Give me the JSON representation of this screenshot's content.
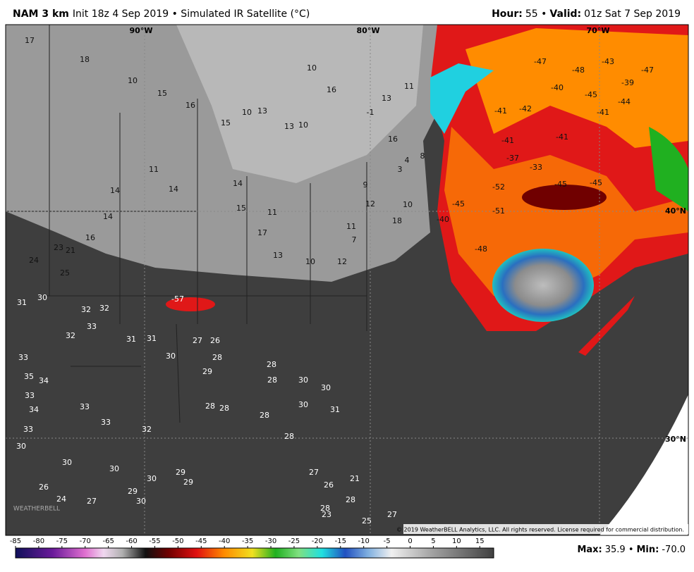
{
  "header": {
    "model": "NAM 3 km",
    "init": "Init 18z 4 Sep 2019 • Simulated IR Satellite (°C)",
    "hour_label": "Hour:",
    "hour": "55 •",
    "valid_label": "Valid:",
    "valid": "01z Sat 7 Sep 2019"
  },
  "map": {
    "grid_labels": [
      "90°W",
      "80°W",
      "70°W",
      "40°N",
      "30°N"
    ],
    "copyright": "© 2019 WeatherBELL Analytics, LLC. All rights reserved. License required for commercial distribution.",
    "logo": "WEATHERBELL",
    "north_values": [
      17,
      18,
      10,
      15,
      16,
      15,
      10,
      13,
      13,
      10,
      16,
      10,
      -1,
      13,
      11,
      16,
      4,
      3,
      8,
      9,
      12,
      10,
      18,
      11,
      7,
      12,
      10,
      13,
      17,
      15,
      11,
      14,
      14,
      11,
      14,
      14,
      16,
      21,
      23,
      24,
      25
    ],
    "south_values": [
      30,
      31,
      32,
      32,
      33,
      32,
      31,
      31,
      27,
      26,
      28,
      29,
      30,
      28,
      28,
      30,
      30,
      30,
      31,
      28,
      28,
      28,
      28,
      27,
      26,
      21,
      28,
      25,
      27,
      23,
      28,
      30,
      30,
      30,
      30,
      29,
      29,
      30,
      27,
      24,
      26,
      33,
      34,
      33,
      33,
      35,
      34,
      33,
      33,
      32,
      29,
      -57
    ],
    "storm_values": [
      -48,
      -40,
      -42,
      -41,
      -41,
      -41,
      -37,
      -33,
      -45,
      -45,
      -45,
      -39,
      -43,
      -47,
      -47,
      -41,
      -44,
      -40,
      -48,
      -51,
      -52,
      -45
    ]
  },
  "colorbar": {
    "range": [
      -85,
      18
    ],
    "ticks": [
      -85,
      -80,
      -75,
      -70,
      -65,
      -60,
      -55,
      -50,
      -45,
      -40,
      -35,
      -30,
      -25,
      -20,
      -15,
      -10,
      -5,
      0,
      5,
      10,
      15
    ],
    "stops": [
      {
        "value": -85,
        "color": "#10105a"
      },
      {
        "value": -77,
        "color": "#6a1a9a"
      },
      {
        "value": -70,
        "color": "#e070d0"
      },
      {
        "value": -66,
        "color": "#f0d8f0"
      },
      {
        "value": -62,
        "color": "#b0b0b0"
      },
      {
        "value": -57,
        "color": "#101010"
      },
      {
        "value": -52,
        "color": "#700000"
      },
      {
        "value": -46,
        "color": "#e01010"
      },
      {
        "value": -40,
        "color": "#ff8c00"
      },
      {
        "value": -34,
        "color": "#f0e020"
      },
      {
        "value": -29,
        "color": "#20b020"
      },
      {
        "value": -24,
        "color": "#80e080"
      },
      {
        "value": -19,
        "color": "#20e0e0"
      },
      {
        "value": -14,
        "color": "#2050c0"
      },
      {
        "value": -9,
        "color": "#80b0e0"
      },
      {
        "value": -4,
        "color": "#f0f0f0"
      },
      {
        "value": 5,
        "color": "#a0a0a0"
      },
      {
        "value": 18,
        "color": "#404040"
      }
    ]
  },
  "footer": {
    "max_label": "Max:",
    "max": "35.9 •",
    "min_label": "Min:",
    "min": "-70.0"
  }
}
